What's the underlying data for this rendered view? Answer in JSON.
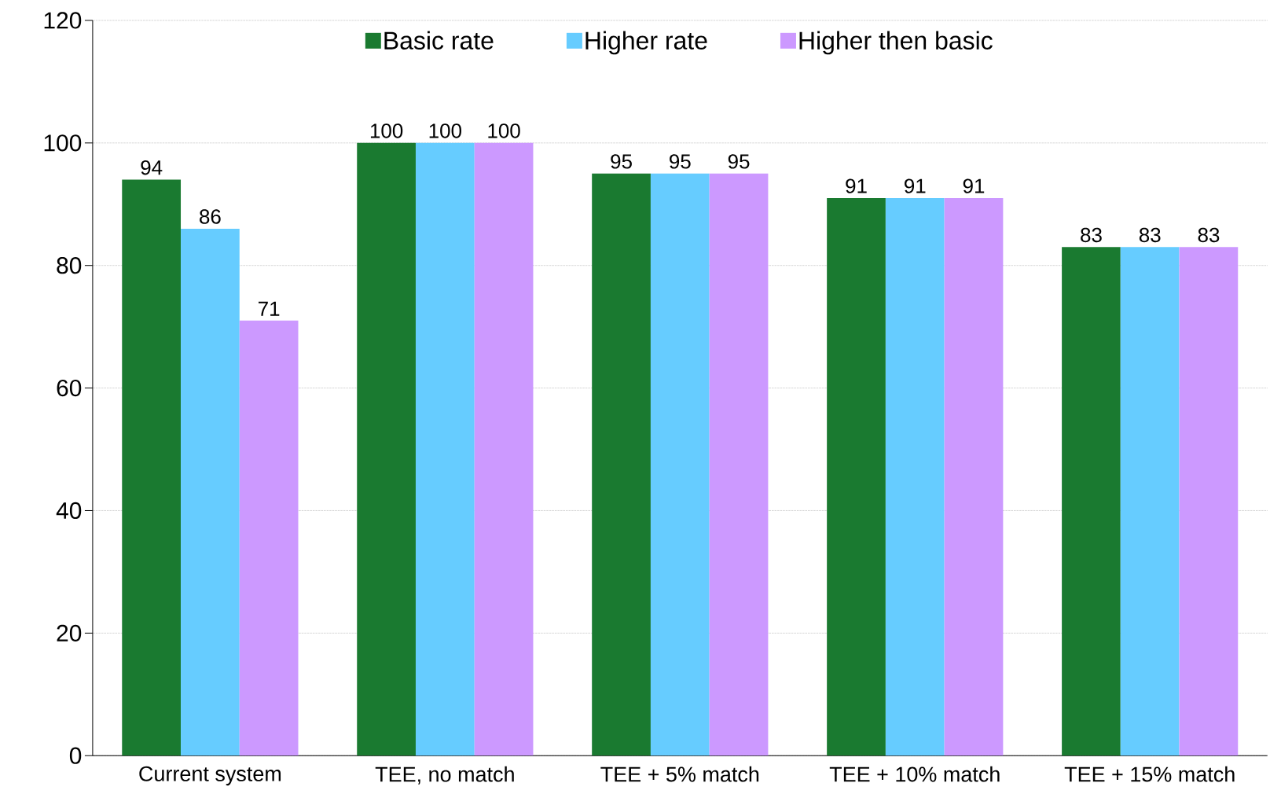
{
  "chart_data": {
    "type": "bar",
    "categories": [
      "Current system",
      "TEE, no match",
      "TEE + 5% match",
      "TEE + 10% match",
      "TEE + 15% match"
    ],
    "series": [
      {
        "name": "Basic rate",
        "color": "#1a7a30",
        "values": [
          94,
          100,
          95,
          91,
          83
        ]
      },
      {
        "name": "Higher rate",
        "color": "#66ccff",
        "values": [
          86,
          100,
          95,
          91,
          83
        ]
      },
      {
        "name": "Higher then basic",
        "color": "#cc99ff",
        "values": [
          71,
          100,
          95,
          91,
          83
        ]
      }
    ],
    "ylim": [
      0,
      120
    ],
    "yticks": [
      0,
      20,
      40,
      60,
      80,
      100,
      120
    ],
    "grid": "y",
    "legend": "top",
    "data_labels": true
  }
}
